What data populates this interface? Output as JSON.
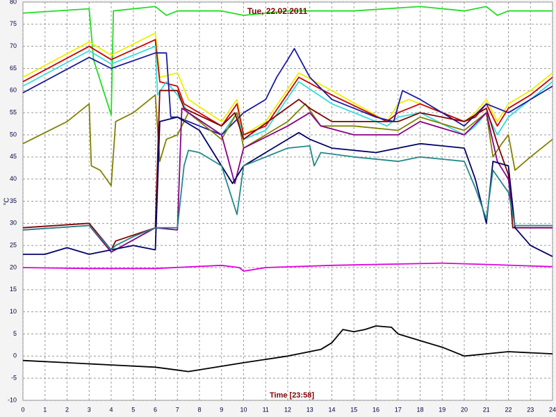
{
  "chart_data": {
    "type": "line",
    "title": "Tue, 22.02.2011",
    "x_label": "Time [23:58]",
    "y_label": "°C",
    "xlim": [
      0,
      24
    ],
    "ylim": [
      -10,
      80
    ],
    "xticks": [
      0,
      1,
      2,
      3,
      4,
      5,
      6,
      7,
      8,
      9,
      10,
      11,
      12,
      13,
      14,
      15,
      16,
      17,
      18,
      19,
      20,
      21,
      22,
      23,
      24
    ],
    "yticks": [
      -10,
      -5,
      0,
      5,
      10,
      15,
      20,
      25,
      30,
      35,
      40,
      45,
      50,
      55,
      60,
      65,
      70,
      75,
      80
    ],
    "grid": true,
    "series": [
      {
        "color": "#22dd22",
        "x": [
          0,
          3,
          3.2,
          4,
          4.1,
          6,
          6.5,
          7,
          9,
          10,
          12,
          15,
          18,
          20,
          21,
          21.5,
          22,
          24
        ],
        "values": [
          77.5,
          78.5,
          67,
          54.5,
          78,
          79,
          77,
          78,
          78,
          77,
          78,
          78,
          79,
          78,
          79,
          77,
          78,
          78
        ]
      },
      {
        "color": "#eeee00",
        "x": [
          0,
          3,
          4,
          6,
          6.2,
          7,
          7.5,
          9,
          9.7,
          10,
          11,
          12.5,
          14,
          16.5,
          17,
          17.5,
          20,
          20.5,
          21,
          21.5,
          22,
          23,
          24
        ],
        "values": [
          63,
          71,
          68,
          73,
          63,
          64,
          58,
          53,
          58,
          50,
          53,
          64,
          60,
          53,
          57,
          58,
          53,
          55,
          58,
          53,
          57,
          60,
          64
        ]
      },
      {
        "color": "#cc0000",
        "x": [
          0,
          3,
          4,
          6,
          6.2,
          7,
          7.3,
          9,
          9.7,
          10,
          11,
          12.5,
          14,
          16.5,
          17,
          18,
          20,
          20.5,
          21,
          21.5,
          22,
          23,
          24
        ],
        "values": [
          62,
          70,
          67,
          71.5,
          62,
          61,
          57,
          52,
          57,
          50,
          52,
          63,
          59,
          53,
          55,
          57,
          53,
          54,
          57,
          52,
          56,
          59,
          63
        ]
      },
      {
        "color": "#33dddd",
        "x": [
          0,
          3,
          4,
          6,
          6.1,
          6.5,
          7,
          7.5,
          9,
          9.7,
          10,
          11,
          12.5,
          14,
          16.5,
          17,
          18,
          20,
          20.5,
          21,
          21.5,
          22,
          23,
          24
        ],
        "values": [
          61,
          69,
          66,
          70,
          59,
          62,
          59,
          55,
          50,
          55,
          49,
          51,
          62,
          57,
          52,
          54,
          55,
          50,
          52,
          55,
          50,
          54,
          58,
          62
        ]
      },
      {
        "color": "#1a1aa0",
        "x": [
          0,
          3,
          4,
          6,
          6.5,
          6.7,
          7,
          8,
          9,
          10,
          11,
          11.5,
          12,
          12.3,
          13,
          14,
          16,
          16.8,
          17.2,
          18,
          20,
          21,
          22,
          23,
          24
        ],
        "values": [
          59.5,
          67.5,
          65,
          68.5,
          68.5,
          54,
          54,
          52,
          50,
          55,
          58,
          63,
          67,
          69.5,
          63,
          58,
          54,
          53,
          60,
          58,
          52,
          57,
          55,
          58,
          61
        ]
      },
      {
        "color": "#808000",
        "x": [
          0,
          2,
          3,
          3.1,
          3.5,
          4,
          4.2,
          5,
          6,
          6.2,
          6.5,
          7,
          7.5,
          9,
          9.7,
          10,
          12,
          12.8,
          13.5,
          15,
          17,
          18,
          20,
          21,
          21.3,
          21.7,
          22,
          22.3,
          23,
          24
        ],
        "values": [
          48,
          53,
          57,
          43,
          42,
          38.5,
          53,
          55,
          59,
          44,
          49,
          50,
          55,
          49,
          55,
          47,
          53,
          57,
          52,
          52,
          51,
          54,
          51,
          55,
          45,
          48,
          50,
          42,
          45,
          49
        ]
      },
      {
        "color": "#800000",
        "x": [
          0,
          3,
          4,
          4.2,
          6,
          6.2,
          7,
          7.3,
          9,
          9.6,
          10,
          12.5,
          13,
          14,
          16,
          17,
          18,
          20,
          21,
          21.5,
          22,
          22.2,
          24
        ],
        "values": [
          29,
          30,
          24,
          26,
          29,
          60,
          60,
          56,
          52,
          55,
          49,
          58,
          56,
          53,
          53,
          53,
          55,
          53,
          56,
          48,
          41,
          29,
          29
        ]
      },
      {
        "color": "#880088",
        "x": [
          0,
          3,
          4,
          6,
          7,
          7.2,
          9,
          9.6,
          10,
          12,
          13,
          13.5,
          15,
          17,
          18,
          20,
          21,
          21.5,
          22,
          22.3,
          24
        ],
        "values": [
          28.5,
          29.5,
          23.5,
          29,
          28.5,
          56,
          50,
          39,
          47,
          52,
          55,
          52,
          50,
          50,
          53,
          50,
          55,
          44,
          40,
          29,
          29
        ]
      },
      {
        "color": "#000066",
        "x": [
          0,
          1,
          2,
          3,
          4,
          5,
          6,
          6.2,
          7,
          8,
          9,
          9.5,
          10,
          12,
          12.5,
          13,
          14,
          16,
          18,
          20,
          20.5,
          21,
          21.3,
          22,
          22.3,
          23,
          24
        ],
        "values": [
          23,
          23,
          24.5,
          23,
          24,
          25,
          24,
          53,
          54,
          51,
          43,
          39,
          43,
          49,
          50.5,
          49,
          47,
          46,
          48,
          47,
          40,
          30,
          44,
          43,
          29,
          25,
          22.5
        ]
      },
      {
        "color": "#228888",
        "x": [
          0,
          3,
          4,
          4.2,
          5,
          6,
          7,
          7.3,
          7.5,
          8,
          9,
          9.7,
          10,
          12,
          13,
          13.2,
          13.5,
          15,
          17,
          18,
          20,
          20.5,
          21,
          21.3,
          22,
          22.3,
          24
        ],
        "values": [
          28.5,
          29.5,
          24,
          25,
          27,
          29,
          29,
          43,
          46.5,
          46,
          43,
          32,
          43,
          47,
          47.5,
          43,
          46,
          45,
          44,
          45,
          44,
          38,
          31,
          42,
          37,
          29.5,
          29.5
        ]
      },
      {
        "color": "#dd00dd",
        "x": [
          0,
          3,
          6,
          9,
          9.8,
          10,
          11,
          14,
          19,
          21,
          24
        ],
        "values": [
          20,
          19.8,
          19.8,
          20.5,
          20,
          19.2,
          20,
          20.5,
          21,
          20.7,
          20.2
        ]
      },
      {
        "color": "#000000",
        "x": [
          0,
          2,
          4,
          6,
          7.5,
          10,
          12,
          13.5,
          14,
          14.5,
          15,
          15.5,
          16,
          16.7,
          17,
          18,
          19,
          20,
          21,
          22,
          24
        ],
        "values": [
          -1,
          -1.5,
          -2,
          -2.5,
          -3.5,
          -1.5,
          0,
          1.5,
          3,
          6,
          5.5,
          6,
          6.8,
          6.5,
          5,
          3.5,
          2,
          0,
          0.5,
          1,
          0.5
        ]
      }
    ]
  }
}
